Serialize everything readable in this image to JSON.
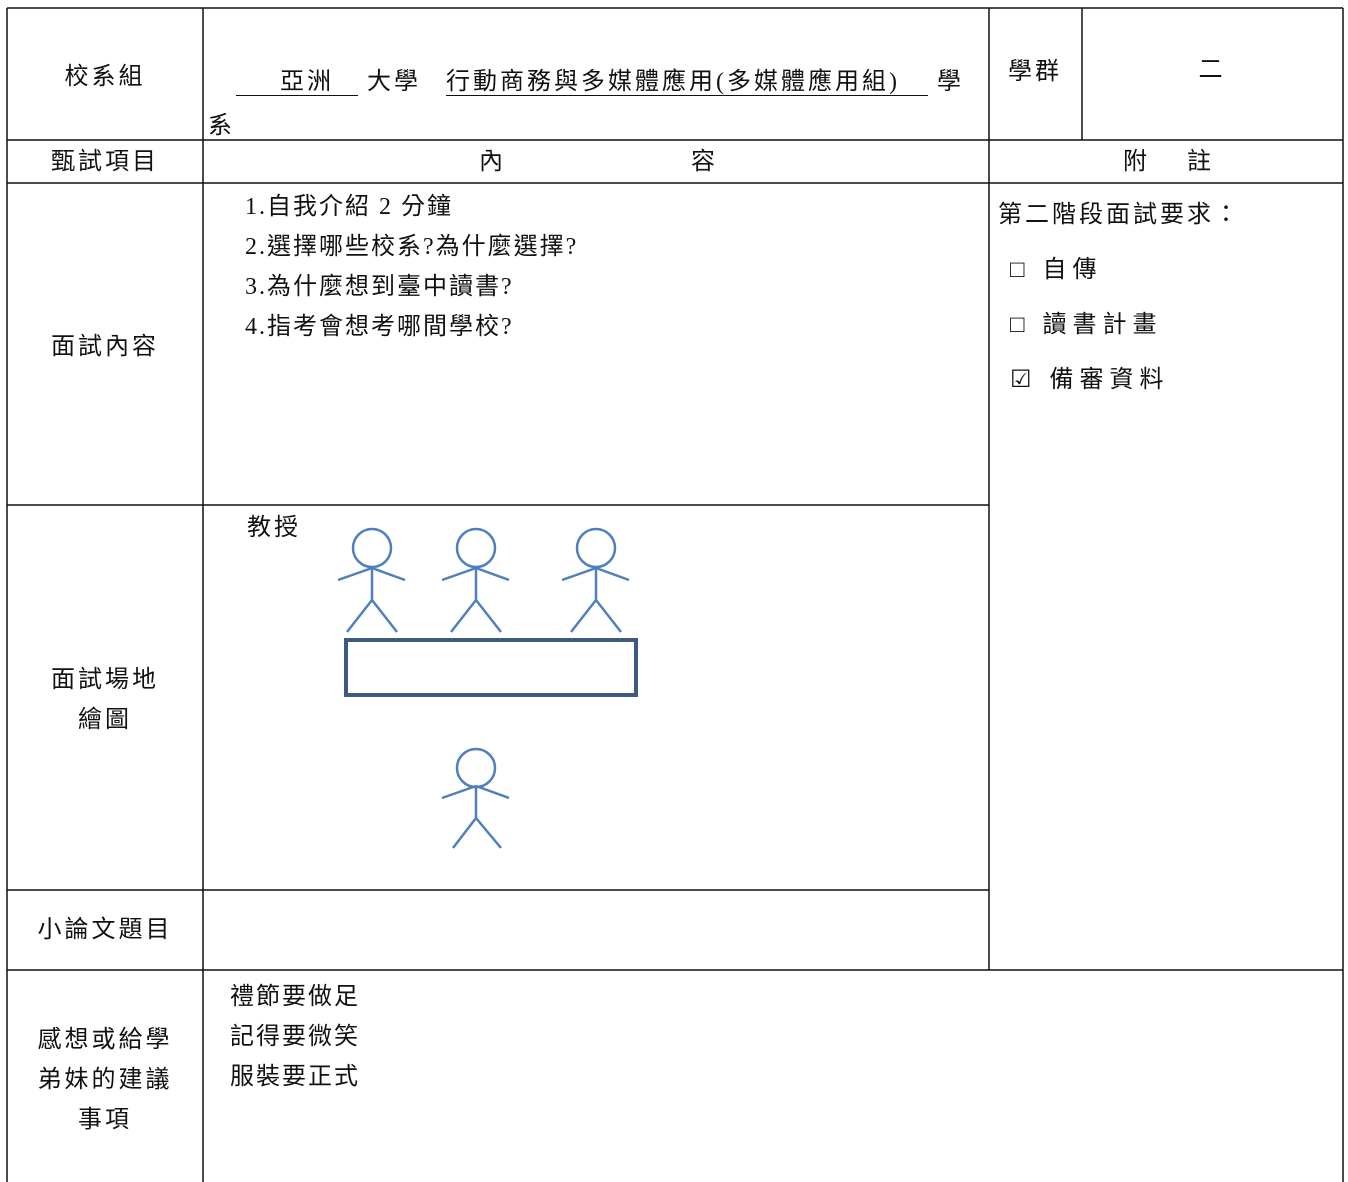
{
  "header": {
    "school_label": "校系組",
    "university": "亞洲",
    "university_suffix": "大學",
    "department": "行動商務與多媒體應用(多媒體應用組)",
    "department_suffix": "學系",
    "group_label": "學群",
    "group_value": "二"
  },
  "columns": {
    "item": "甄試項目",
    "content": "內容",
    "note": "附註"
  },
  "interview": {
    "label": "面試內容",
    "questions": [
      "1.自我介紹 2 分鐘",
      "2.選擇哪些校系?為什麼選擇?",
      "3.為什麼想到臺中讀書?",
      "4.指考會想考哪間學校?"
    ]
  },
  "notes": {
    "title": "第二階段面試要求：",
    "items": [
      "□ 自傳",
      "□ 讀書計畫",
      "☑ 備審資料"
    ]
  },
  "venue": {
    "label_lines": [
      "面試場地",
      "繪圖"
    ],
    "professor_label": "教授"
  },
  "essay": {
    "label": "小論文題目"
  },
  "advice": {
    "label_lines": [
      "感想或給學",
      "弟妹的建議",
      "事項"
    ],
    "lines": [
      "禮節要做足",
      "記得要微笑",
      "服裝要正式"
    ]
  }
}
